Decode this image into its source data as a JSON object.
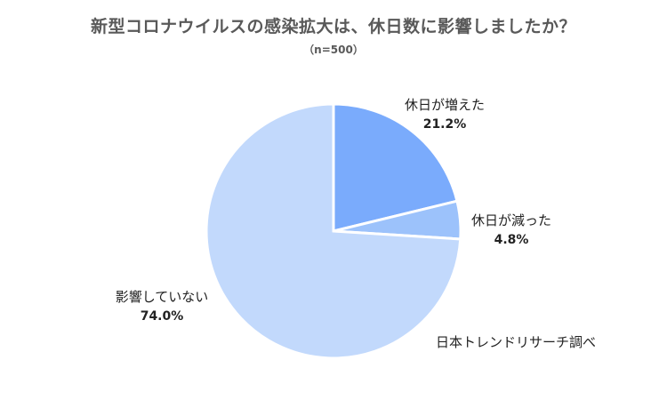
{
  "chart_data": {
    "type": "pie",
    "title": "新型コロナウイルスの感染拡大は、休日数に影響しましたか？",
    "subtitle": "（n=500）",
    "slices": [
      {
        "label": "休日が増えた",
        "value": 21.2,
        "display": "21.2%",
        "color": "#7aabfc"
      },
      {
        "label": "休日が減った",
        "value": 4.8,
        "display": "4.8%",
        "color": "#9cc2fb"
      },
      {
        "label": "影響していない",
        "value": 74.0,
        "display": "74.0%",
        "color": "#c2d9fc"
      }
    ],
    "legend": "none",
    "source": "日本トレンドリサーチ調べ"
  }
}
